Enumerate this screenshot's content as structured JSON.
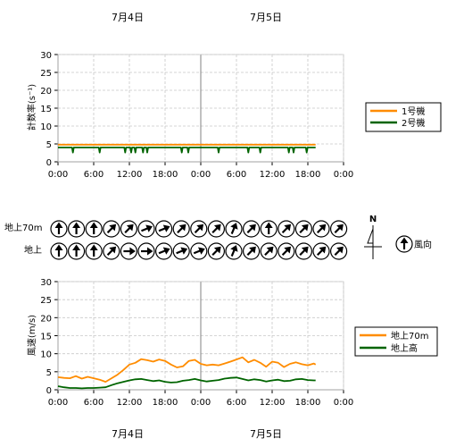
{
  "dates": [
    "7月4日",
    "7月5日"
  ],
  "x_ticks": [
    "0:00",
    "6:00",
    "12:00",
    "18:00",
    "0:00",
    "6:00",
    "12:00",
    "18:00",
    "0:00"
  ],
  "chart_data": [
    {
      "type": "line",
      "ylabel": "計数率(s⁻¹)",
      "ylim": [
        0,
        30
      ],
      "y_ticks": [
        0,
        5,
        10,
        15,
        20,
        25,
        30
      ],
      "x_unit": "hours since 7月4日 0:00",
      "xlim": [
        0,
        48
      ],
      "grid": true,
      "legend": "right",
      "series": [
        {
          "name": "1号機",
          "color": "#ff8c00",
          "x": [
            0,
            43.3
          ],
          "values": [
            4.8,
            4.8
          ]
        },
        {
          "name": "2号機",
          "color": "#006400",
          "x": [
            0,
            43.3
          ],
          "values": [
            4.0,
            4.0
          ],
          "dips_at": [
            2.5,
            7.0,
            11.3,
            12.3,
            13.0,
            14.3,
            15.0,
            20.8,
            21.9,
            27.0,
            32.0,
            34.0,
            38.8,
            39.6,
            41.8
          ]
        }
      ]
    },
    {
      "type": "line",
      "ylabel": "風速(m/s)",
      "ylim": [
        0,
        30
      ],
      "y_ticks": [
        0,
        5,
        10,
        15,
        20,
        25,
        30
      ],
      "x_unit": "hours since 7月4日 0:00",
      "xlim": [
        0,
        48
      ],
      "grid": true,
      "legend": "right",
      "series": [
        {
          "name": "地上70m",
          "color": "#ff8c00",
          "x": [
            0,
            1,
            2,
            3,
            4,
            5,
            6,
            7,
            8,
            9,
            10,
            11,
            12,
            13,
            14,
            15,
            16,
            17,
            18,
            19,
            20,
            21,
            22,
            23,
            24,
            25,
            26,
            27,
            28,
            29,
            30,
            31,
            32,
            33,
            34,
            35,
            36,
            37,
            38,
            39,
            40,
            41,
            42,
            43,
            43.3
          ],
          "values": [
            3.5,
            3.3,
            3.2,
            3.8,
            3.1,
            3.6,
            3.2,
            2.8,
            2.2,
            3.2,
            4.2,
            5.5,
            7.0,
            7.5,
            8.5,
            8.2,
            7.8,
            8.4,
            8.0,
            7.0,
            6.2,
            6.5,
            8.0,
            8.3,
            7.2,
            6.8,
            7.0,
            6.8,
            7.3,
            7.8,
            8.4,
            9.0,
            7.6,
            8.3,
            7.5,
            6.4,
            7.8,
            7.5,
            6.3,
            7.2,
            7.6,
            7.1,
            6.8,
            7.3,
            7.0
          ]
        },
        {
          "name": "地上高",
          "color": "#006400",
          "x": [
            0,
            1,
            2,
            3,
            4,
            5,
            6,
            7,
            8,
            9,
            10,
            11,
            12,
            13,
            14,
            15,
            16,
            17,
            18,
            19,
            20,
            21,
            22,
            23,
            24,
            25,
            26,
            27,
            28,
            29,
            30,
            31,
            32,
            33,
            34,
            35,
            36,
            37,
            38,
            39,
            40,
            41,
            42,
            43,
            43.3
          ],
          "values": [
            1.0,
            0.7,
            0.5,
            0.5,
            0.4,
            0.5,
            0.5,
            0.6,
            0.7,
            1.3,
            1.8,
            2.2,
            2.6,
            2.9,
            3.0,
            2.7,
            2.4,
            2.6,
            2.2,
            2.0,
            2.1,
            2.5,
            2.7,
            3.0,
            2.6,
            2.3,
            2.5,
            2.7,
            3.1,
            3.3,
            3.4,
            3.0,
            2.6,
            2.9,
            2.7,
            2.3,
            2.6,
            2.8,
            2.4,
            2.5,
            2.9,
            3.0,
            2.7,
            2.6,
            2.6
          ]
        }
      ]
    }
  ],
  "wind": {
    "rows": [
      {
        "label": "地上70m",
        "directions": [
          "S",
          "S",
          "S",
          "SW",
          "SW",
          "WSW",
          "WSW",
          "SW",
          "SW",
          "SW",
          "SSW",
          "SW",
          "S",
          "SW",
          "SW",
          "SW",
          "SW"
        ]
      },
      {
        "label": "地上",
        "directions": [
          "S",
          "S",
          "S",
          "SW",
          "W",
          "W",
          "WSW",
          "WSW",
          "WSW",
          "SW",
          "SSW",
          "SW",
          "SW",
          "SW",
          "SW",
          "SW",
          "SW"
        ]
      }
    ],
    "north_label": "N",
    "legend_label": "風向",
    "legend_direction": "S"
  },
  "colors": {
    "grid": "#c8c8c8",
    "axis": "#000000",
    "midnight": "#808080"
  }
}
